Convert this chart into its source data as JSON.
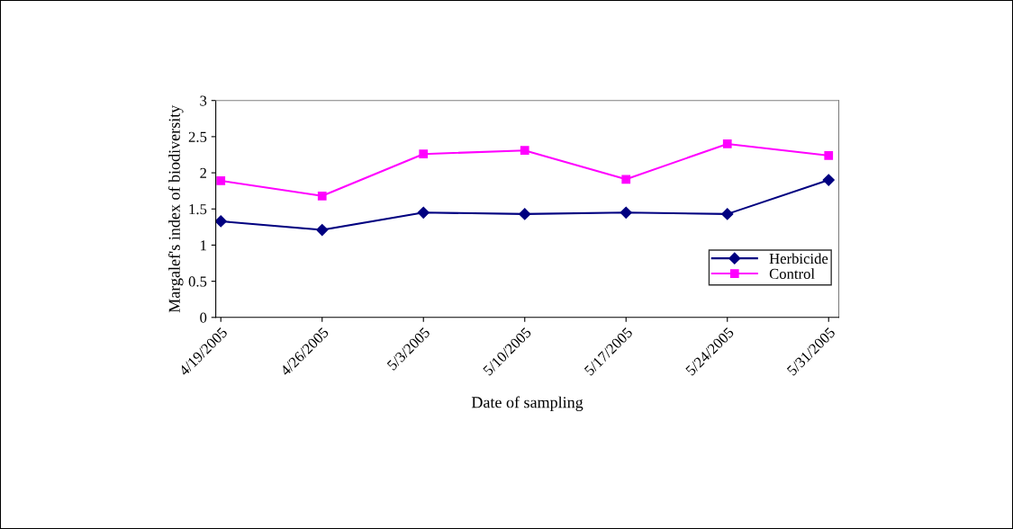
{
  "chart_data": {
    "type": "line",
    "xlabel": "Date of sampling",
    "ylabel": "Margalef's index of biodiversity",
    "categories": [
      "4/19/2005",
      "4/26/2005",
      "5/3/2005",
      "5/10/2005",
      "5/17/2005",
      "5/24/2005",
      "5/31/2005"
    ],
    "series": [
      {
        "name": "Herbicide",
        "color": "#000080",
        "marker": "diamond",
        "values": [
          1.33,
          1.21,
          1.45,
          1.43,
          1.45,
          1.43,
          1.9
        ]
      },
      {
        "name": "Control",
        "color": "#ff00ff",
        "marker": "square",
        "values": [
          1.89,
          1.68,
          2.26,
          2.31,
          1.91,
          2.4,
          2.24
        ]
      }
    ],
    "ylim": [
      0,
      3
    ],
    "yticks": [
      0,
      0.5,
      1,
      1.5,
      2,
      2.5,
      3
    ],
    "grid": false,
    "legend": "right",
    "line_style": "solid"
  }
}
